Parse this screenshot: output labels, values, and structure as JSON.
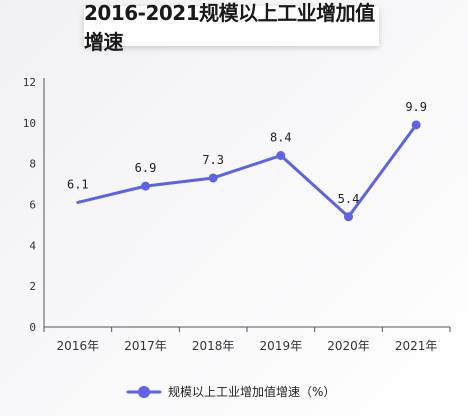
{
  "colors": {
    "series": "#5b63e6",
    "axis": "#555555",
    "title_bg": "#ffffff"
  },
  "chart_data": {
    "type": "line",
    "title": "2016-2021规模以上工业增加值增速",
    "categories": [
      "2016年",
      "2017年",
      "2018年",
      "2019年",
      "2020年",
      "2021年"
    ],
    "series": [
      {
        "name": "规模以上工业增加值增速（%）",
        "values": [
          6.1,
          6.9,
          7.3,
          8.4,
          5.4,
          9.9
        ]
      }
    ],
    "data_labels": [
      "6.1",
      "6.9",
      "7.3",
      "8.4",
      "5.4",
      "9.9"
    ],
    "y_ticks": [
      "0",
      "2",
      "4",
      "6",
      "8",
      "10",
      "12"
    ],
    "ylim": [
      0,
      12
    ],
    "xlabel": "",
    "ylabel": "",
    "grid": false,
    "legend_position": "bottom"
  }
}
